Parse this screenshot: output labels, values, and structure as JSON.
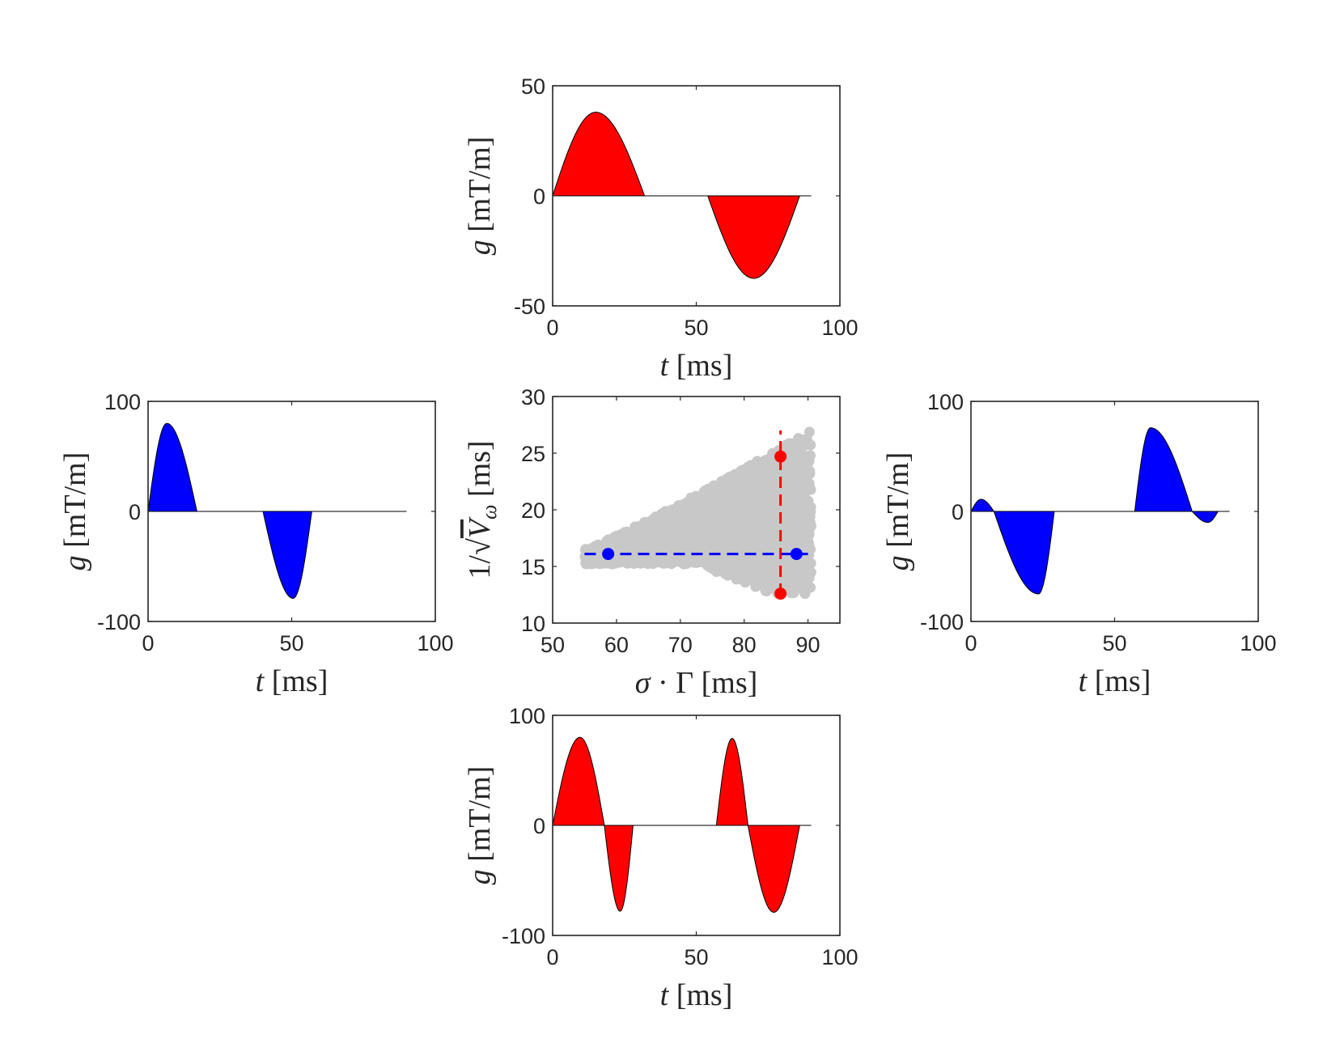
{
  "chart_data": [
    {
      "id": "top",
      "type": "area",
      "xlabel": "t [ms]",
      "ylabel": "g [mT/m]",
      "xlim": [
        0,
        100
      ],
      "ylim": [
        -50,
        50
      ],
      "xticks": [
        "0",
        "50",
        "100"
      ],
      "yticks": [
        "-50",
        "0",
        "50"
      ],
      "fill_color": "#ff0000",
      "t_end": 90,
      "lobes": [
        {
          "start": 0,
          "peak_t": 15,
          "end": 32,
          "amp": 38
        },
        {
          "start": 54,
          "peak_t": 70,
          "end": 86,
          "amp": -37.5
        }
      ]
    },
    {
      "id": "left",
      "type": "area",
      "xlabel": "t [ms]",
      "ylabel": "g [mT/m]",
      "xlim": [
        0,
        100
      ],
      "ylim": [
        -100,
        100
      ],
      "xticks": [
        "0",
        "50",
        "100"
      ],
      "yticks": [
        "-100",
        "0",
        "100"
      ],
      "fill_color": "#0000ff",
      "t_end": 90,
      "lobes": [
        {
          "start": 0,
          "peak_t": 6.5,
          "end": 17,
          "amp": 80
        },
        {
          "start": 40,
          "peak_t": 50.5,
          "end": 57,
          "amp": -79
        }
      ]
    },
    {
      "id": "center",
      "type": "scatter",
      "xlabel": "σ · Γ [ms]",
      "ylabel": "1/√V_ω [ms]",
      "xlim": [
        50,
        95
      ],
      "ylim": [
        10,
        30
      ],
      "xticks": [
        "50",
        "60",
        "70",
        "80",
        "90"
      ],
      "yticks": [
        "10",
        "15",
        "20",
        "25",
        "30"
      ],
      "cloud_color": "#c8c8c8",
      "cloud": {
        "x_min": 55,
        "x_max": 90.5,
        "y_floor": 15.2,
        "y_base_top": 16.5,
        "y_top_at_max": 27,
        "y_bottom_right": 12
      },
      "blue_line": {
        "y": 16.1,
        "x": [
          55,
          90
        ],
        "color": "#0000ff"
      },
      "red_line": {
        "x": 85.7,
        "y": [
          12.5,
          27
        ],
        "color": "#ff0000"
      },
      "points": [
        {
          "x": 58.7,
          "y": 16.1,
          "color": "#0000ff"
        },
        {
          "x": 88.2,
          "y": 16.1,
          "color": "#0000ff"
        },
        {
          "x": 85.7,
          "y": 24.7,
          "color": "#ff0000"
        },
        {
          "x": 85.7,
          "y": 12.6,
          "color": "#ff0000"
        }
      ]
    },
    {
      "id": "right",
      "type": "area",
      "xlabel": "t [ms]",
      "ylabel": "g [mT/m]",
      "xlim": [
        0,
        100
      ],
      "ylim": [
        -100,
        100
      ],
      "xticks": [
        "0",
        "50",
        "100"
      ],
      "yticks": [
        "-100",
        "0",
        "100"
      ],
      "fill_color": "#0000ff",
      "t_end": 90,
      "lobes": [
        {
          "start": 0,
          "peak_t": 3.5,
          "end": 8,
          "amp": 11
        },
        {
          "start": 8,
          "peak_t": 23.5,
          "end": 29,
          "amp": -75
        },
        {
          "start": 57,
          "peak_t": 62.5,
          "end": 77,
          "amp": 76
        },
        {
          "start": 77,
          "peak_t": 82.5,
          "end": 86,
          "amp": -10
        }
      ]
    },
    {
      "id": "bottom",
      "type": "area",
      "xlabel": "t [ms]",
      "ylabel": "g [mT/m]",
      "xlim": [
        0,
        100
      ],
      "ylim": [
        -100,
        100
      ],
      "xticks": [
        "0",
        "50",
        "100"
      ],
      "yticks": [
        "-100",
        "0",
        "100"
      ],
      "fill_color": "#ff0000",
      "t_end": 90,
      "lobes": [
        {
          "start": 0,
          "peak_t": 9.5,
          "end": 18,
          "amp": 80
        },
        {
          "start": 18,
          "peak_t": 23.5,
          "end": 28,
          "amp": -78
        },
        {
          "start": 57,
          "peak_t": 62.5,
          "end": 68,
          "amp": 79
        },
        {
          "start": 68,
          "peak_t": 77,
          "end": 86,
          "amp": -79
        }
      ]
    }
  ]
}
